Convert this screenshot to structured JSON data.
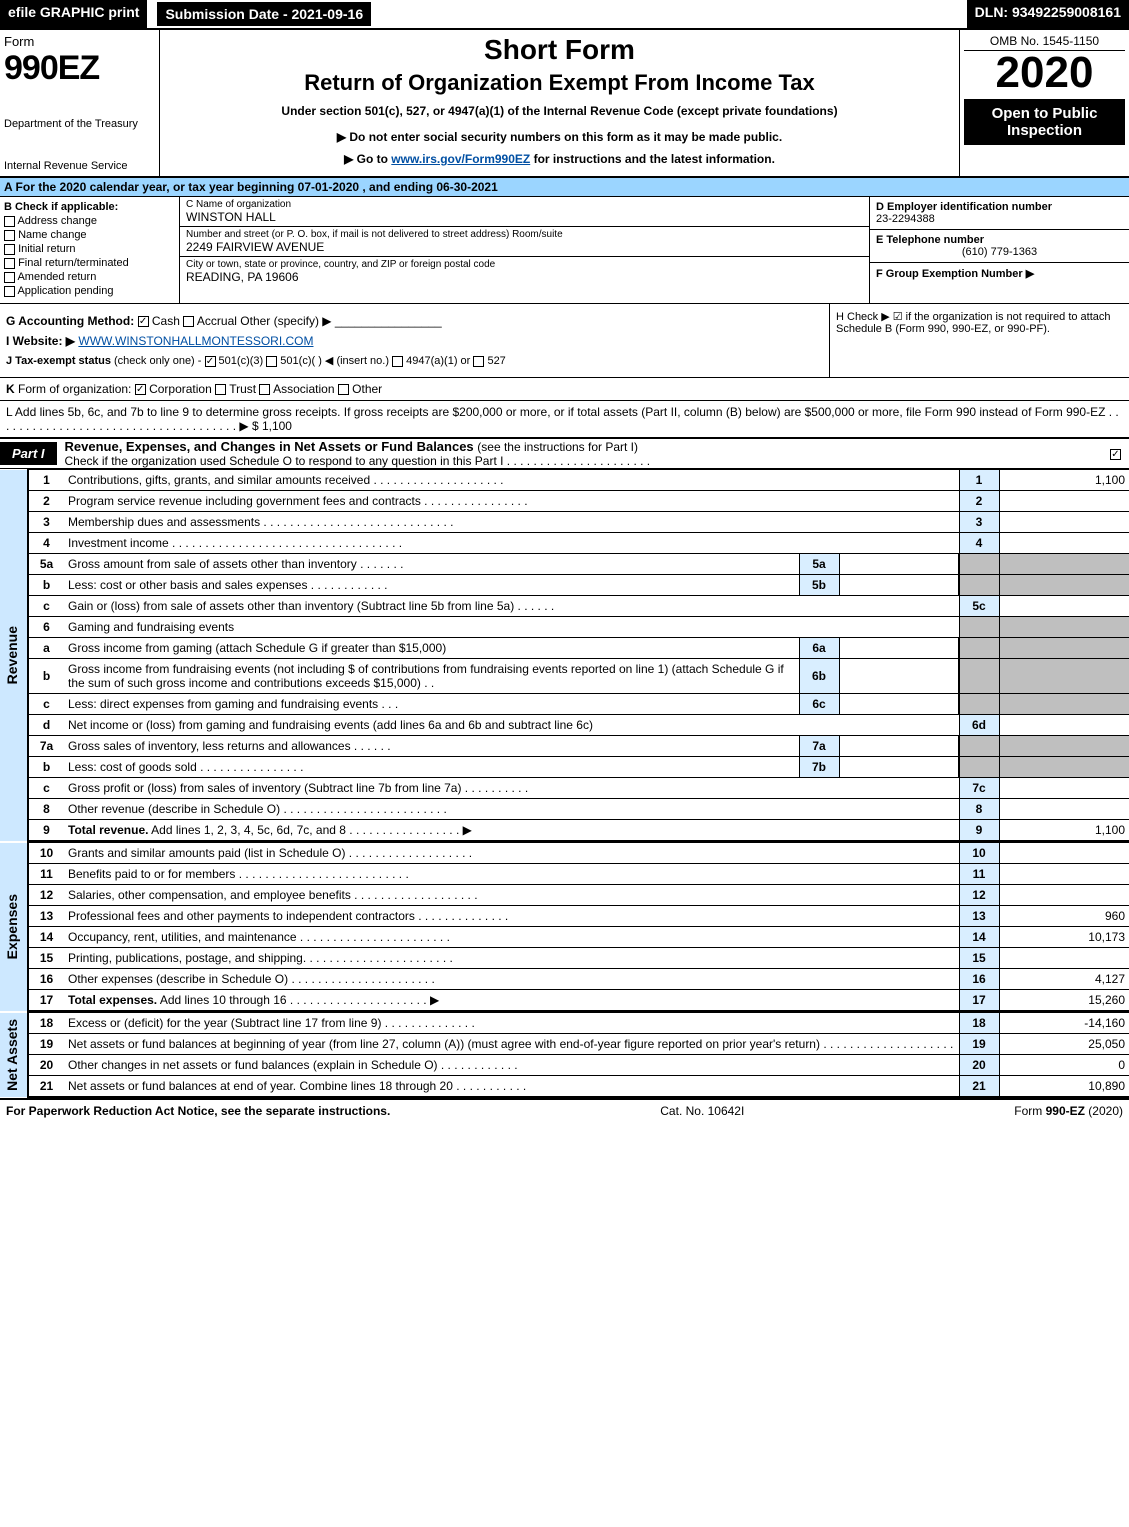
{
  "topbar": {
    "efile": "efile GRAPHIC print",
    "submission": "Submission Date - 2021-09-16",
    "dln": "DLN: 93492259008161"
  },
  "header": {
    "left": {
      "form": "Form",
      "formno": "990EZ",
      "dept": "Department of the Treasury",
      "irs": "Internal Revenue Service"
    },
    "center": {
      "short": "Short Form",
      "title": "Return of Organization Exempt From Income Tax",
      "under": "Under section 501(c), 527, or 4947(a)(1) of the Internal Revenue Code (except private foundations)",
      "donot": "▶ Do not enter social security numbers on this form as it may be made public.",
      "goto_pre": "▶ Go to ",
      "goto_link": "www.irs.gov/Form990EZ",
      "goto_post": " for instructions and the latest information."
    },
    "right": {
      "omb": "OMB No. 1545-1150",
      "year": "2020",
      "open": "Open to Public Inspection"
    }
  },
  "row_a": "A For the 2020 calendar year, or tax year beginning 07-01-2020 , and ending 06-30-2021",
  "box_b": {
    "title": "B Check if applicable:",
    "opts": [
      "Address change",
      "Name change",
      "Initial return",
      "Final return/terminated",
      "Amended return",
      "Application pending"
    ]
  },
  "box_c": {
    "name_lbl": "C Name of organization",
    "name": "WINSTON HALL",
    "street_lbl": "Number and street (or P. O. box, if mail is not delivered to street address)    Room/suite",
    "street": "2249 FAIRVIEW AVENUE",
    "city_lbl": "City or town, state or province, country, and ZIP or foreign postal code",
    "city": "READING, PA  19606"
  },
  "box_d": {
    "lbl": "D Employer identification number",
    "val": "23-2294388"
  },
  "box_e": {
    "lbl": "E Telephone number",
    "val": "(610) 779-1363"
  },
  "box_f": {
    "lbl": "F Group Exemption Number  ▶",
    "val": ""
  },
  "box_g": {
    "lbl": "G Accounting Method:",
    "cash": "Cash",
    "accrual": "Accrual",
    "other": "Other (specify) ▶"
  },
  "box_h": "H  Check ▶ ☑ if the organization is not required to attach Schedule B (Form 990, 990-EZ, or 990-PF).",
  "box_i": {
    "pre": "I Website: ▶",
    "link": "WWW.WINSTONHALLMONTESSORI.COM"
  },
  "box_j": "J Tax-exempt status (check only one) - ☑ 501(c)(3)  ☐ 501(c)(  ) ◀ (insert no.)  ☐ 4947(a)(1) or  ☐ 527",
  "box_k": "K Form of organization:   ☑ Corporation   ☐ Trust   ☐ Association   ☐ Other",
  "box_l": "L Add lines 5b, 6c, and 7b to line 9 to determine gross receipts. If gross receipts are $200,000 or more, or if total assets (Part II, column (B) below) are $500,000 or more, file Form 990 instead of Form 990-EZ .  .  .  .  .  .  .  .  .  .  .  .  .  .  .  .  .  .  .  .  .  .  .  .  .  .  .  .  .  .  .  .  .  .  .  .  .  ▶ $ 1,100",
  "part1": {
    "tab": "Part I",
    "title": "Revenue, Expenses, and Changes in Net Assets or Fund Balances ",
    "sub": "(see the instructions for Part I)",
    "check": "Check if the organization used Schedule O to respond to any question in this Part I .  .  .  .  .  .  .  .  .  .  .  .  .  .  .  .  .  .  .  .  .  ."
  },
  "side_labels": {
    "revenue": "Revenue",
    "expenses": "Expenses",
    "netassets": "Net Assets"
  },
  "revenue_rows": [
    {
      "n": "1",
      "desc": "Contributions, gifts, grants, and similar amounts received .  .  .  .  .  .  .  .  .  .  .  .  .  .  .  .  .  .  .  .",
      "rnum": "1",
      "rval": "1,100"
    },
    {
      "n": "2",
      "desc": "Program service revenue including government fees and contracts .  .  .  .  .  .  .  .  .  .  .  .  .  .  .  .",
      "rnum": "2",
      "rval": ""
    },
    {
      "n": "3",
      "desc": "Membership dues and assessments .  .  .  .  .  .  .  .  .  .  .  .  .  .  .  .  .  .  .  .  .  .  .  .  .  .  .  .  .",
      "rnum": "3",
      "rval": ""
    },
    {
      "n": "4",
      "desc": "Investment income .  .  .  .  .  .  .  .  .  .  .  .  .  .  .  .  .  .  .  .  .  .  .  .  .  .  .  .  .  .  .  .  .  .  .",
      "rnum": "4",
      "rval": ""
    },
    {
      "n": "5a",
      "desc": "Gross amount from sale of assets other than inventory .  .  .  .  .  .  .",
      "innum": "5a",
      "inval": "",
      "grey": true
    },
    {
      "n": "b",
      "desc": "Less: cost or other basis and sales expenses .  .  .  .  .  .  .  .  .  .  .  .",
      "innum": "5b",
      "inval": "",
      "grey": true
    },
    {
      "n": "c",
      "desc": "Gain or (loss) from sale of assets other than inventory (Subtract line 5b from line 5a) .  .  .  .  .  .",
      "rnum": "5c",
      "rval": ""
    },
    {
      "n": "6",
      "desc": "Gaming and fundraising events",
      "grey": true
    },
    {
      "n": "a",
      "desc": "Gross income from gaming (attach Schedule G if greater than $15,000)",
      "innum": "6a",
      "inval": "",
      "grey": true
    },
    {
      "n": "b",
      "desc": "Gross income from fundraising events (not including $                     of contributions from fundraising events reported on line 1) (attach Schedule G if the sum of such gross income and contributions exceeds $15,000)    .  .",
      "innum": "6b",
      "inval": "",
      "grey": true
    },
    {
      "n": "c",
      "desc": "Less: direct expenses from gaming and fundraising events      .  .  .",
      "innum": "6c",
      "inval": "",
      "grey": true
    },
    {
      "n": "d",
      "desc": "Net income or (loss) from gaming and fundraising events (add lines 6a and 6b and subtract line 6c)",
      "rnum": "6d",
      "rval": ""
    },
    {
      "n": "7a",
      "desc": "Gross sales of inventory, less returns and allowances .  .  .  .  .  .",
      "innum": "7a",
      "inval": "",
      "grey": true
    },
    {
      "n": "b",
      "desc": "Less: cost of goods sold        .  .  .  .  .  .  .  .  .  .  .  .  .  .  .  .",
      "innum": "7b",
      "inval": "",
      "grey": true
    },
    {
      "n": "c",
      "desc": "Gross profit or (loss) from sales of inventory (Subtract line 7b from line 7a) .  .  .  .  .  .  .  .  .  .",
      "rnum": "7c",
      "rval": ""
    },
    {
      "n": "8",
      "desc": "Other revenue (describe in Schedule O) .  .  .  .  .  .  .  .  .  .  .  .  .  .  .  .  .  .  .  .  .  .  .  .  .",
      "rnum": "8",
      "rval": ""
    },
    {
      "n": "9",
      "desc": "Total revenue. Add lines 1, 2, 3, 4, 5c, 6d, 7c, and 8  .  .  .  .  .  .  .  .  .  .  .  .  .  .  .  .  .     ▶",
      "rnum": "9",
      "rval": "1,100",
      "bold": true
    }
  ],
  "expense_rows": [
    {
      "n": "10",
      "desc": "Grants and similar amounts paid (list in Schedule O) .  .  .  .  .  .  .  .  .  .  .  .  .  .  .  .  .  .  .",
      "rnum": "10",
      "rval": ""
    },
    {
      "n": "11",
      "desc": "Benefits paid to or for members     .  .  .  .  .  .  .  .  .  .  .  .  .  .  .  .  .  .  .  .  .  .  .  .  .  .",
      "rnum": "11",
      "rval": ""
    },
    {
      "n": "12",
      "desc": "Salaries, other compensation, and employee benefits .  .  .  .  .  .  .  .  .  .  .  .  .  .  .  .  .  .  .",
      "rnum": "12",
      "rval": ""
    },
    {
      "n": "13",
      "desc": "Professional fees and other payments to independent contractors .  .  .  .  .  .  .  .  .  .  .  .  .  .",
      "rnum": "13",
      "rval": "960"
    },
    {
      "n": "14",
      "desc": "Occupancy, rent, utilities, and maintenance .  .  .  .  .  .  .  .  .  .  .  .  .  .  .  .  .  .  .  .  .  .  .",
      "rnum": "14",
      "rval": "10,173"
    },
    {
      "n": "15",
      "desc": "Printing, publications, postage, and shipping.  .  .  .  .  .  .  .  .  .  .  .  .  .  .  .  .  .  .  .  .  .  .",
      "rnum": "15",
      "rval": ""
    },
    {
      "n": "16",
      "desc": "Other expenses (describe in Schedule O)      .  .  .  .  .  .  .  .  .  .  .  .  .  .  .  .  .  .  .  .  .  .",
      "rnum": "16",
      "rval": "4,127"
    },
    {
      "n": "17",
      "desc": "Total expenses. Add lines 10 through 16     .  .  .  .  .  .  .  .  .  .  .  .  .  .  .  .  .  .  .  .  .  ▶",
      "rnum": "17",
      "rval": "15,260",
      "bold": true
    }
  ],
  "net_rows": [
    {
      "n": "18",
      "desc": "Excess or (deficit) for the year (Subtract line 17 from line 9)       .  .  .  .  .  .  .  .  .  .  .  .  .  .",
      "rnum": "18",
      "rval": "-14,160"
    },
    {
      "n": "19",
      "desc": "Net assets or fund balances at beginning of year (from line 27, column (A)) (must agree with end-of-year figure reported on prior year's return) .  .  .  .  .  .  .  .  .  .  .  .  .  .  .  .  .  .  .  .",
      "rnum": "19",
      "rval": "25,050"
    },
    {
      "n": "20",
      "desc": "Other changes in net assets or fund balances (explain in Schedule O) .  .  .  .  .  .  .  .  .  .  .  .",
      "rnum": "20",
      "rval": "0"
    },
    {
      "n": "21",
      "desc": "Net assets or fund balances at end of year. Combine lines 18 through 20 .  .  .  .  .  .  .  .  .  .  .",
      "rnum": "21",
      "rval": "10,890"
    }
  ],
  "footer": {
    "left": "For Paperwork Reduction Act Notice, see the separate instructions.",
    "mid": "Cat. No. 10642I",
    "right": "Form 990-EZ (2020)"
  }
}
